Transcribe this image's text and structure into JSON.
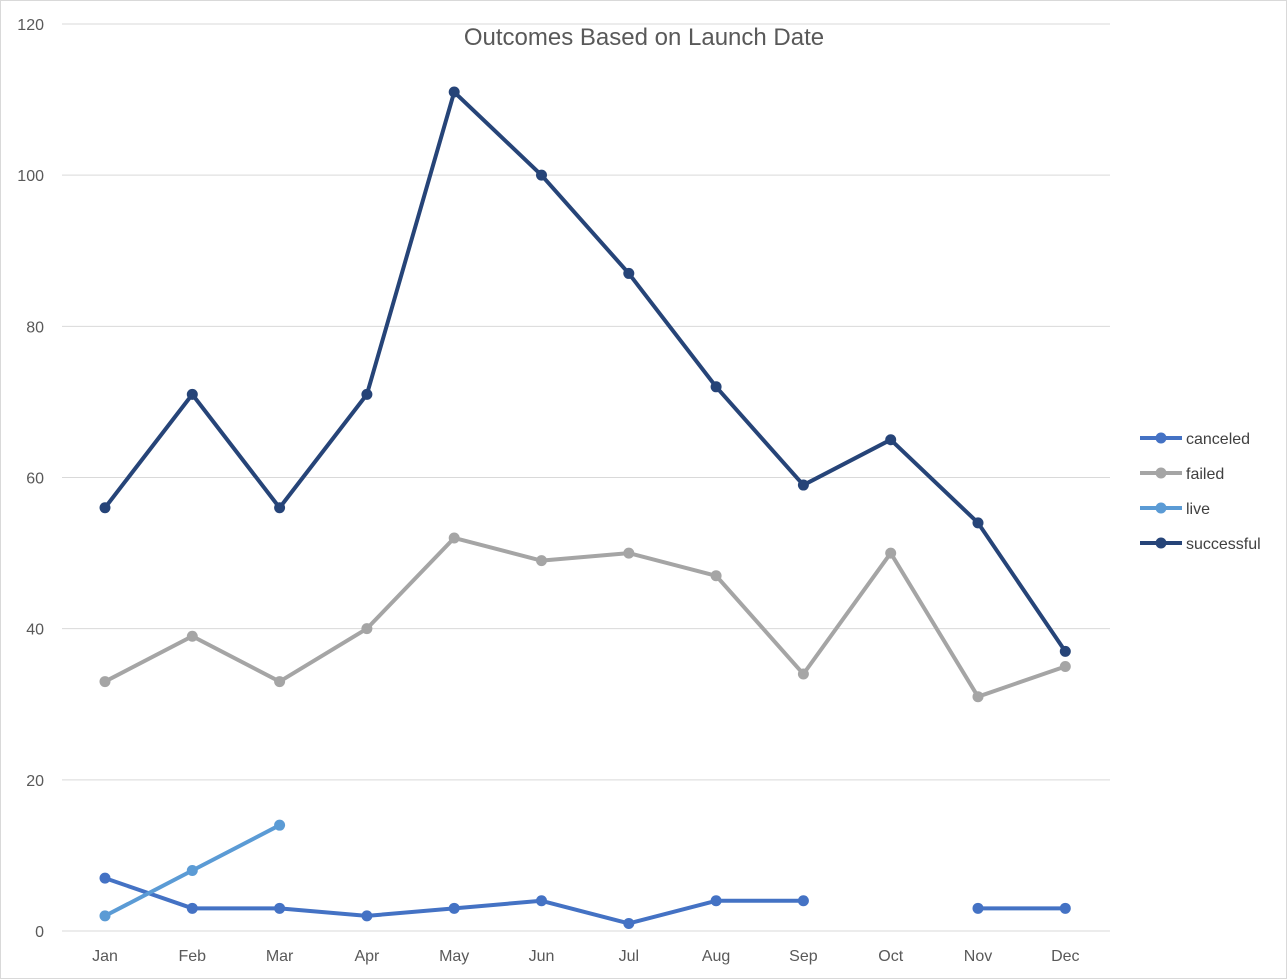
{
  "chart_data": {
    "type": "line",
    "title": "Outcomes Based on Launch Date",
    "xlabel": "",
    "ylabel": "",
    "categories": [
      "Jan",
      "Feb",
      "Mar",
      "Apr",
      "May",
      "Jun",
      "Jul",
      "Aug",
      "Sep",
      "Oct",
      "Nov",
      "Dec"
    ],
    "ylim": [
      0,
      120
    ],
    "yticks": [
      0,
      20,
      40,
      60,
      80,
      100,
      120
    ],
    "grid": true,
    "legend_position": "right",
    "series": [
      {
        "name": "canceled",
        "color": "#4472c4",
        "values": [
          7,
          3,
          3,
          2,
          3,
          4,
          1,
          4,
          4,
          null,
          3,
          3
        ]
      },
      {
        "name": "failed",
        "color": "#a5a5a5",
        "values": [
          33,
          39,
          33,
          40,
          52,
          49,
          50,
          47,
          34,
          50,
          31,
          35
        ]
      },
      {
        "name": "live",
        "color": "#5b9bd5",
        "values": [
          2,
          8,
          14,
          null,
          null,
          null,
          null,
          null,
          null,
          null,
          null,
          null
        ]
      },
      {
        "name": "successful",
        "color": "#264478",
        "values": [
          56,
          71,
          56,
          71,
          111,
          100,
          87,
          72,
          59,
          65,
          54,
          37
        ]
      }
    ]
  }
}
